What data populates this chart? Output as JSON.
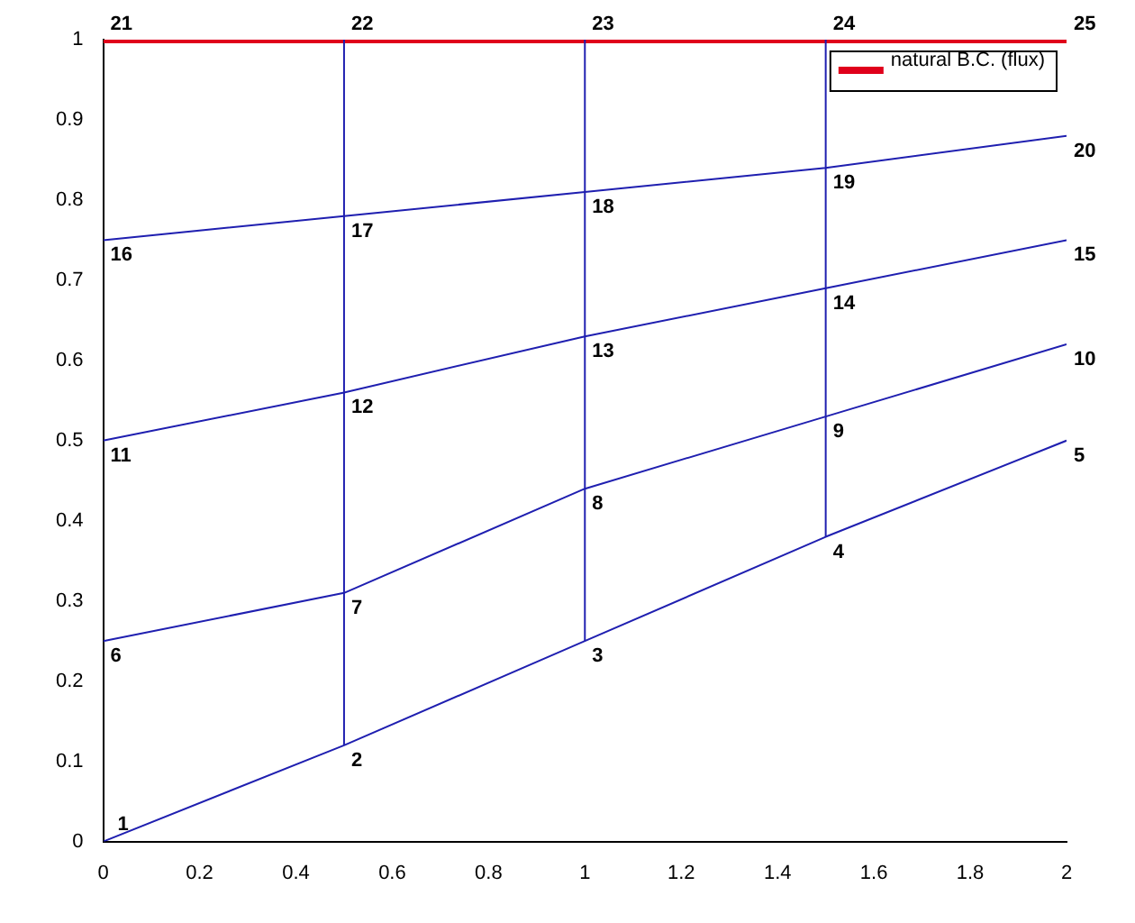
{
  "chart_data": {
    "type": "line",
    "xlim": [
      0,
      2
    ],
    "xticks": [
      0,
      0.2,
      0.4,
      0.6,
      0.8,
      1,
      1.2,
      1.4,
      1.6,
      1.8,
      2
    ],
    "ylim": [
      0,
      1
    ],
    "yticks": [
      0,
      0.1,
      0.2,
      0.3,
      0.4,
      0.5,
      0.6,
      0.7,
      0.8,
      0.9,
      1
    ],
    "grid": false,
    "marker": "none",
    "legend": "top right",
    "series": [
      {
        "color": "#1f1fb0",
        "x": [
          0,
          0.5,
          1,
          1.5,
          2
        ],
        "values": [
          0,
          0.12,
          0.25,
          0.38,
          0.5
        ]
      },
      {
        "color": "#1f1fb0",
        "x": [
          0,
          0.5,
          1,
          1.5,
          2
        ],
        "values": [
          0.25,
          0.31,
          0.44,
          0.53,
          0.62
        ]
      },
      {
        "color": "#1f1fb0",
        "x": [
          0,
          0.5,
          1,
          1.5,
          2
        ],
        "values": [
          0.5,
          0.56,
          0.63,
          0.69,
          0.75
        ]
      },
      {
        "color": "#1f1fb0",
        "x": [
          0,
          0.5,
          1,
          1.5,
          2
        ],
        "values": [
          0.75,
          0.78,
          0.81,
          0.84,
          0.88
        ]
      },
      {
        "color": "#1f1fb0",
        "x": [
          0.5,
          0.5,
          0.5,
          0.5,
          0.5
        ],
        "values": [
          0.12,
          0.31,
          0.56,
          0.78,
          1
        ]
      },
      {
        "color": "#1f1fb0",
        "x": [
          1,
          1,
          1,
          1,
          1
        ],
        "values": [
          0.25,
          0.44,
          0.63,
          0.81,
          1
        ]
      },
      {
        "color": "#1f1fb0",
        "x": [
          1.5,
          1.5,
          1.5,
          1.5,
          1.5
        ],
        "values": [
          0.38,
          0.53,
          0.69,
          0.84,
          1
        ]
      },
      {
        "name": "natural B.C. (flux)",
        "color": "#e0001b",
        "x": [
          0,
          2
        ],
        "values": [
          1,
          1
        ]
      }
    ],
    "annotations": [
      {
        "text": "1",
        "x": 0,
        "y": 0
      },
      {
        "text": "2",
        "x": 0.5,
        "y": 0.12
      },
      {
        "text": "3",
        "x": 1,
        "y": 0.25
      },
      {
        "text": "4",
        "x": 1.5,
        "y": 0.38
      },
      {
        "text": "5",
        "x": 2,
        "y": 0.5
      },
      {
        "text": "6",
        "x": 0,
        "y": 0.25
      },
      {
        "text": "7",
        "x": 0.5,
        "y": 0.31
      },
      {
        "text": "8",
        "x": 1,
        "y": 0.44
      },
      {
        "text": "9",
        "x": 1.5,
        "y": 0.53
      },
      {
        "text": "10",
        "x": 2,
        "y": 0.62
      },
      {
        "text": "11",
        "x": 0,
        "y": 0.5
      },
      {
        "text": "12",
        "x": 0.5,
        "y": 0.56
      },
      {
        "text": "13",
        "x": 1,
        "y": 0.63
      },
      {
        "text": "14",
        "x": 1.5,
        "y": 0.69
      },
      {
        "text": "15",
        "x": 2,
        "y": 0.75
      },
      {
        "text": "16",
        "x": 0,
        "y": 0.75
      },
      {
        "text": "17",
        "x": 0.5,
        "y": 0.78
      },
      {
        "text": "18",
        "x": 1,
        "y": 0.81
      },
      {
        "text": "19",
        "x": 1.5,
        "y": 0.84
      },
      {
        "text": "20",
        "x": 2,
        "y": 0.88
      },
      {
        "text": "21",
        "x": 0,
        "y": 1
      },
      {
        "text": "22",
        "x": 0.5,
        "y": 1
      },
      {
        "text": "23",
        "x": 1,
        "y": 1
      },
      {
        "text": "24",
        "x": 1.5,
        "y": 1
      },
      {
        "text": "25",
        "x": 2,
        "y": 1
      }
    ]
  }
}
